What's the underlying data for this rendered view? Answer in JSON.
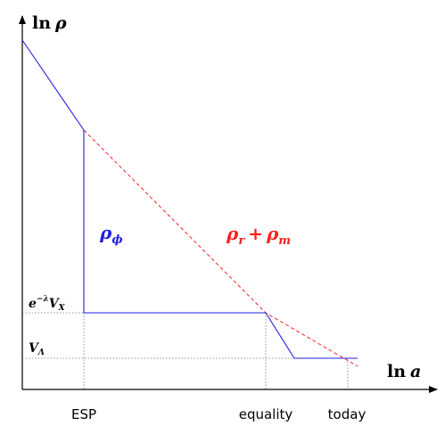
{
  "axes": {
    "y_label_fn": "ln",
    "y_label_var": "ρ",
    "x_label_fn": "ln",
    "x_label_var": "a"
  },
  "ticks": {
    "esp": "ESP",
    "equality": "equality",
    "today": "today"
  },
  "levels": {
    "vx_prefix": "e",
    "vx_exp": "−λ",
    "vx_var": "V",
    "vx_sub": "X",
    "vl_var": "V",
    "vl_sub": "Λ"
  },
  "curves": {
    "phi_var": "ρ",
    "phi_sub": "ϕ",
    "rm_var1": "ρ",
    "rm_sub1": "r",
    "rm_plus": "+",
    "rm_var2": "ρ",
    "rm_sub2": "m"
  },
  "colors": {
    "axis": "#000000",
    "phi_curve": "#1f1fe0",
    "matter_curve": "#ff2020",
    "guide": "#555555"
  }
}
